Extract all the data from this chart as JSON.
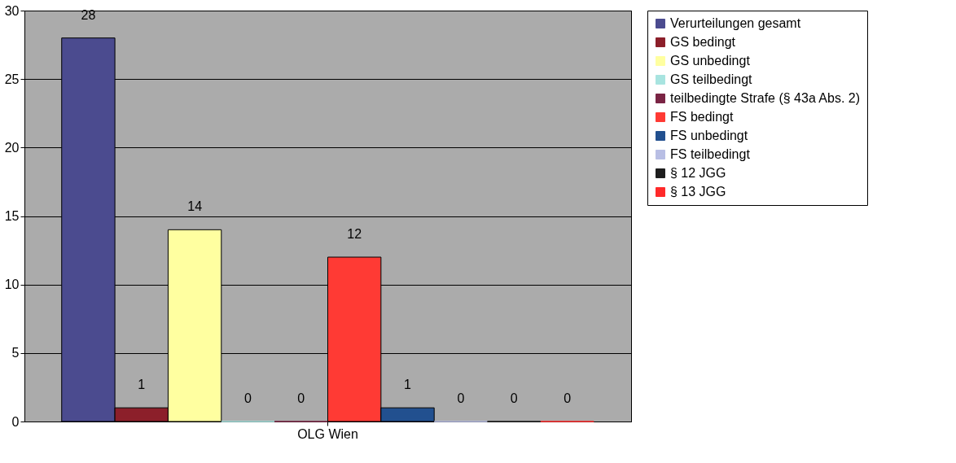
{
  "chart_data": {
    "type": "bar",
    "categories": [
      "OLG Wien"
    ],
    "series": [
      {
        "name": "Verurteilungen gesamt",
        "color": "#4b4b8f",
        "values": [
          28
        ]
      },
      {
        "name": "GS bedingt",
        "color": "#8c1f2a",
        "values": [
          1
        ]
      },
      {
        "name": "GS unbedingt",
        "color": "#ffffa0",
        "values": [
          14
        ]
      },
      {
        "name": "GS teilbedingt",
        "color": "#a8e4e0",
        "values": [
          0
        ]
      },
      {
        "name": "teilbedingte Strafe (§ 43a Abs. 2)",
        "color": "#7a2444",
        "values": [
          0
        ]
      },
      {
        "name": "FS bedingt",
        "color": "#ff3a34",
        "values": [
          12
        ]
      },
      {
        "name": "FS unbedingt",
        "color": "#22508f",
        "values": [
          1
        ]
      },
      {
        "name": "FS teilbedingt",
        "color": "#b8bee4",
        "values": [
          0
        ]
      },
      {
        "name": "§ 12 JGG",
        "color": "#1e1e1e",
        "values": [
          0
        ]
      },
      {
        "name": "§ 13 JGG",
        "color": "#ff2a2a",
        "values": [
          0
        ]
      }
    ],
    "ylim": [
      0,
      30
    ],
    "yticks": [
      0,
      5,
      10,
      15,
      20,
      25,
      30
    ],
    "grid": "y",
    "legend": "right",
    "data_labels": true
  }
}
